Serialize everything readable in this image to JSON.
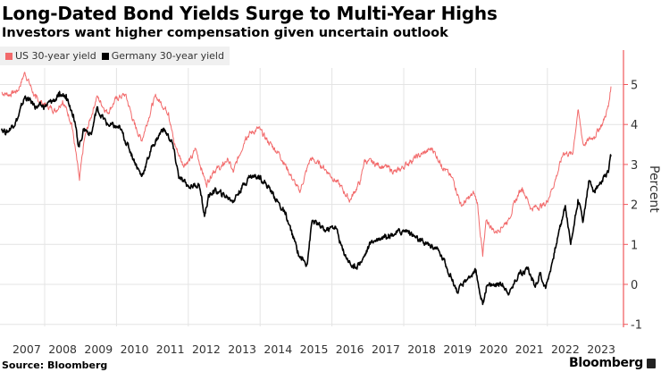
{
  "title": "Long-Dated Bond Yields Surge to Multi-Year Highs",
  "subtitle": "Investors want higher compensation given uncertain outlook",
  "source": "Source: Bloomberg",
  "brand": "Bloomberg",
  "chart_data": {
    "type": "line",
    "title": "Long-Dated Bond Yields Surge to Multi-Year Highs",
    "ylabel": "Percent",
    "xlabel": "",
    "ylim": [
      -1,
      5.8
    ],
    "xlim": [
      2006.8,
      2024.0
    ],
    "yticks": [
      5,
      4,
      3,
      2,
      1,
      0,
      -1
    ],
    "xticks": [
      "2007",
      "2008",
      "2009",
      "2010",
      "2011",
      "2012",
      "2013",
      "2014",
      "2015",
      "2016",
      "2017",
      "2018",
      "2019",
      "2020",
      "2021",
      "2022",
      "2023"
    ],
    "grid": true,
    "legend_position": "top-left",
    "axis_color": "#f0575b",
    "series": [
      {
        "name": "US 30-year yield",
        "color": "#f26a6b",
        "points": [
          [
            2006.8,
            4.8
          ],
          [
            2007.0,
            4.75
          ],
          [
            2007.25,
            4.85
          ],
          [
            2007.45,
            5.3
          ],
          [
            2007.75,
            4.65
          ],
          [
            2008.0,
            4.5
          ],
          [
            2008.3,
            4.35
          ],
          [
            2008.5,
            4.6
          ],
          [
            2008.75,
            4.05
          ],
          [
            2008.97,
            2.6
          ],
          [
            2009.1,
            3.6
          ],
          [
            2009.45,
            4.7
          ],
          [
            2009.75,
            4.3
          ],
          [
            2010.0,
            4.65
          ],
          [
            2010.25,
            4.75
          ],
          [
            2010.5,
            4.0
          ],
          [
            2010.7,
            3.6
          ],
          [
            2011.0,
            4.5
          ],
          [
            2011.1,
            4.7
          ],
          [
            2011.45,
            4.3
          ],
          [
            2011.6,
            3.55
          ],
          [
            2011.85,
            3.0
          ],
          [
            2012.1,
            3.15
          ],
          [
            2012.2,
            3.4
          ],
          [
            2012.5,
            2.5
          ],
          [
            2012.7,
            2.85
          ],
          [
            2012.95,
            2.95
          ],
          [
            2013.1,
            3.15
          ],
          [
            2013.25,
            2.8
          ],
          [
            2013.6,
            3.7
          ],
          [
            2013.95,
            3.9
          ],
          [
            2014.2,
            3.6
          ],
          [
            2014.55,
            3.25
          ],
          [
            2015.1,
            2.3
          ],
          [
            2015.4,
            3.15
          ],
          [
            2015.75,
            2.95
          ],
          [
            2016.2,
            2.5
          ],
          [
            2016.5,
            2.1
          ],
          [
            2016.8,
            2.6
          ],
          [
            2016.9,
            3.1
          ],
          [
            2017.45,
            2.95
          ],
          [
            2017.8,
            2.8
          ],
          [
            2018.2,
            3.1
          ],
          [
            2018.8,
            3.4
          ],
          [
            2019.05,
            3.0
          ],
          [
            2019.4,
            2.57
          ],
          [
            2019.6,
            1.97
          ],
          [
            2019.95,
            2.27
          ],
          [
            2020.05,
            2.05
          ],
          [
            2020.2,
            0.7
          ],
          [
            2020.3,
            1.6
          ],
          [
            2020.55,
            1.3
          ],
          [
            2020.9,
            1.6
          ],
          [
            2021.2,
            2.27
          ],
          [
            2021.3,
            2.42
          ],
          [
            2021.55,
            1.9
          ],
          [
            2021.95,
            2.0
          ],
          [
            2022.2,
            2.55
          ],
          [
            2022.45,
            3.3
          ],
          [
            2022.7,
            3.25
          ],
          [
            2022.85,
            4.36
          ],
          [
            2023.0,
            3.5
          ],
          [
            2023.3,
            3.7
          ],
          [
            2023.55,
            4.05
          ],
          [
            2023.7,
            4.45
          ],
          [
            2023.77,
            4.95
          ]
        ]
      },
      {
        "name": "Germany 30-year yield",
        "color": "#000000",
        "points": [
          [
            2006.8,
            3.9
          ],
          [
            2006.95,
            3.8
          ],
          [
            2007.25,
            4.15
          ],
          [
            2007.45,
            4.7
          ],
          [
            2007.75,
            4.45
          ],
          [
            2008.0,
            4.45
          ],
          [
            2008.4,
            4.7
          ],
          [
            2008.6,
            4.75
          ],
          [
            2008.8,
            4.25
          ],
          [
            2008.95,
            3.45
          ],
          [
            2009.1,
            3.9
          ],
          [
            2009.3,
            3.75
          ],
          [
            2009.45,
            4.4
          ],
          [
            2009.75,
            4.0
          ],
          [
            2010.1,
            3.9
          ],
          [
            2010.4,
            3.3
          ],
          [
            2010.7,
            2.7
          ],
          [
            2011.0,
            3.45
          ],
          [
            2011.3,
            3.9
          ],
          [
            2011.55,
            3.55
          ],
          [
            2011.75,
            2.65
          ],
          [
            2012.0,
            2.45
          ],
          [
            2012.3,
            2.5
          ],
          [
            2012.45,
            1.7
          ],
          [
            2012.55,
            2.15
          ],
          [
            2012.7,
            2.35
          ],
          [
            2012.95,
            2.25
          ],
          [
            2013.25,
            2.1
          ],
          [
            2013.7,
            2.7
          ],
          [
            2014.0,
            2.7
          ],
          [
            2014.3,
            2.35
          ],
          [
            2014.7,
            1.75
          ],
          [
            2015.1,
            0.7
          ],
          [
            2015.3,
            0.5
          ],
          [
            2015.45,
            1.6
          ],
          [
            2015.8,
            1.35
          ],
          [
            2016.1,
            1.45
          ],
          [
            2016.3,
            0.85
          ],
          [
            2016.6,
            0.4
          ],
          [
            2016.85,
            0.62
          ],
          [
            2017.1,
            1.07
          ],
          [
            2017.5,
            1.23
          ],
          [
            2018.1,
            1.35
          ],
          [
            2018.45,
            1.07
          ],
          [
            2018.9,
            0.92
          ],
          [
            2019.15,
            0.55
          ],
          [
            2019.5,
            -0.2
          ],
          [
            2019.8,
            0.18
          ],
          [
            2020.0,
            0.3
          ],
          [
            2020.2,
            -0.5
          ],
          [
            2020.3,
            -0.05
          ],
          [
            2020.7,
            0.02
          ],
          [
            2020.95,
            -0.2
          ],
          [
            2021.2,
            0.27
          ],
          [
            2021.45,
            0.4
          ],
          [
            2021.65,
            -0.05
          ],
          [
            2021.8,
            0.27
          ],
          [
            2021.95,
            -0.1
          ],
          [
            2022.15,
            0.62
          ],
          [
            2022.3,
            1.23
          ],
          [
            2022.5,
            1.97
          ],
          [
            2022.65,
            1.0
          ],
          [
            2022.85,
            2.12
          ],
          [
            2023.0,
            1.6
          ],
          [
            2023.15,
            2.57
          ],
          [
            2023.3,
            2.35
          ],
          [
            2023.45,
            2.5
          ],
          [
            2023.7,
            2.8
          ],
          [
            2023.77,
            3.2
          ]
        ]
      }
    ]
  }
}
